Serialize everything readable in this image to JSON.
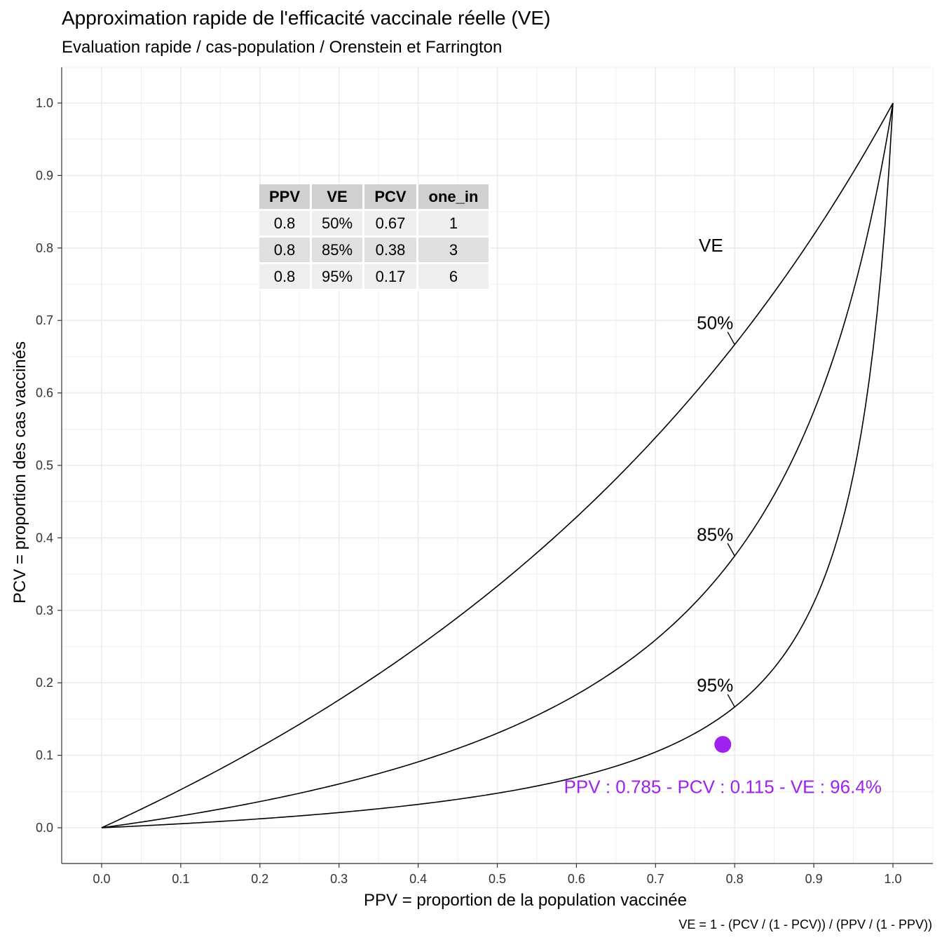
{
  "chart_data": {
    "type": "line",
    "title": "Approximation rapide de l'efficacité vaccinale réelle (VE)",
    "subtitle": "Evaluation rapide / cas-population / Orenstein et Farrington",
    "xlabel": "PPV = proportion de la population vaccinée",
    "ylabel": "PCV = proportion des cas vaccinés",
    "caption": "VE = 1 - (PCV / (1 - PCV)) / (PPV / (1 - PPV))",
    "xlim": [
      -0.05,
      1.05
    ],
    "ylim": [
      -0.05,
      1.05
    ],
    "x_ticks": [
      "0.0",
      "0.1",
      "0.2",
      "0.3",
      "0.4",
      "0.5",
      "0.6",
      "0.7",
      "0.8",
      "0.9",
      "1.0"
    ],
    "y_ticks": [
      "0.0",
      "0.1",
      "0.2",
      "0.3",
      "0.4",
      "0.5",
      "0.6",
      "0.7",
      "0.8",
      "0.9",
      "1.0"
    ],
    "grid": true,
    "legend_title": "VE",
    "series": [
      {
        "name": "50%",
        "ve": 0.5,
        "label_anchor_ppv": 0.8
      },
      {
        "name": "85%",
        "ve": 0.85,
        "label_anchor_ppv": 0.8
      },
      {
        "name": "95%",
        "ve": 0.95,
        "label_anchor_ppv": 0.8
      }
    ],
    "point": {
      "ppv": 0.785,
      "pcv": 0.115,
      "label": "PPV : 0.785 - PCV : 0.115 - VE : 96.4%",
      "color": "#a020f0"
    }
  },
  "table": {
    "headers": [
      "PPV",
      "VE",
      "PCV",
      "one_in"
    ],
    "rows": [
      [
        "0.8",
        "50%",
        "0.67",
        "1"
      ],
      [
        "0.8",
        "85%",
        "0.38",
        "3"
      ],
      [
        "0.8",
        "95%",
        "0.17",
        "6"
      ]
    ]
  },
  "colors": {
    "grid": "#ebebeb",
    "axis": "#333333",
    "line": "#000000",
    "highlight": "#a020f0"
  }
}
